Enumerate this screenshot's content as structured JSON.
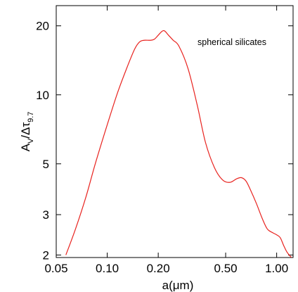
{
  "chart_data": {
    "type": "line",
    "title": "",
    "xlabel": "a(μm)",
    "ylabel": "A_V/Δτ_9.7",
    "ylabel_parts": {
      "main": "A",
      "sub1": "V",
      "mid": "/Δτ",
      "sub2": "9.7"
    },
    "x_scale": "log",
    "y_scale": "log",
    "xlim": [
      0.05,
      1.25
    ],
    "ylim": [
      1.95,
      24.5
    ],
    "x_ticks": [
      0.05,
      0.1,
      0.2,
      0.5,
      1.0
    ],
    "x_tick_labels": [
      "0.05",
      "0.10",
      "0.20",
      "0.50",
      "1.00"
    ],
    "y_ticks": [
      2,
      3,
      5,
      10,
      20
    ],
    "y_tick_labels": [
      "2",
      "3",
      "5",
      "10",
      "20"
    ],
    "annotation": "spherical silicates",
    "grid": false,
    "series": [
      {
        "color": "#e8231f",
        "x": [
          0.057,
          0.065,
          0.075,
          0.085,
          0.1,
          0.115,
          0.13,
          0.145,
          0.155,
          0.165,
          0.18,
          0.19,
          0.2,
          0.21,
          0.218,
          0.23,
          0.245,
          0.265,
          0.3,
          0.34,
          0.38,
          0.43,
          0.48,
          0.53,
          0.58,
          0.62,
          0.66,
          0.7,
          0.76,
          0.82,
          0.88,
          0.95,
          1.0,
          1.05,
          1.1,
          1.15,
          1.2,
          1.25
        ],
        "y": [
          2.0,
          2.6,
          3.6,
          5.0,
          7.4,
          10.2,
          13.0,
          15.8,
          17.0,
          17.3,
          17.3,
          17.5,
          18.2,
          18.9,
          19.0,
          18.2,
          17.3,
          16.3,
          13.0,
          9.0,
          6.2,
          4.8,
          4.25,
          4.15,
          4.3,
          4.35,
          4.2,
          3.85,
          3.35,
          2.9,
          2.6,
          2.5,
          2.45,
          2.38,
          2.2,
          2.06,
          1.98,
          1.92
        ]
      }
    ]
  }
}
